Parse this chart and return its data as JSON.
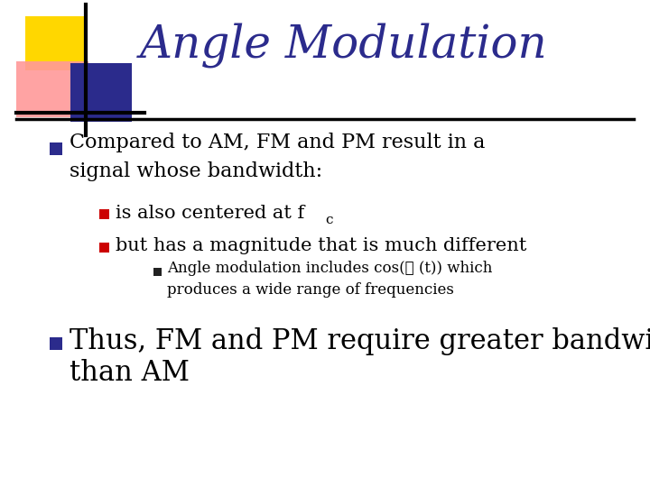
{
  "title": "Angle Modulation",
  "title_color": "#2B2B8C",
  "title_fontsize": 36,
  "background_color": "#FFFFFF",
  "logo_yellow": "#FFD700",
  "logo_pink": "#FF8888",
  "logo_blue": "#2B2B8C",
  "bullet_blue": "#2B2B8C",
  "bullet_red": "#CC0000",
  "bullet_dark": "#222222",
  "texts": {
    "b1_l1": "Compared to AM, FM and PM result in a",
    "b1_l2": "signal whose bandwidth:",
    "b2": "is also centered at f",
    "b2_sub": "c",
    "b3": "but has a magnitude that is much different",
    "b4_l1": "Angle modulation includes cos(∅ (t)) which",
    "b4_l2": "produces a wide range of frequencies",
    "b5_l1": "Thus, FM and PM require greater bandwidth",
    "b5_l2": "than AM"
  }
}
